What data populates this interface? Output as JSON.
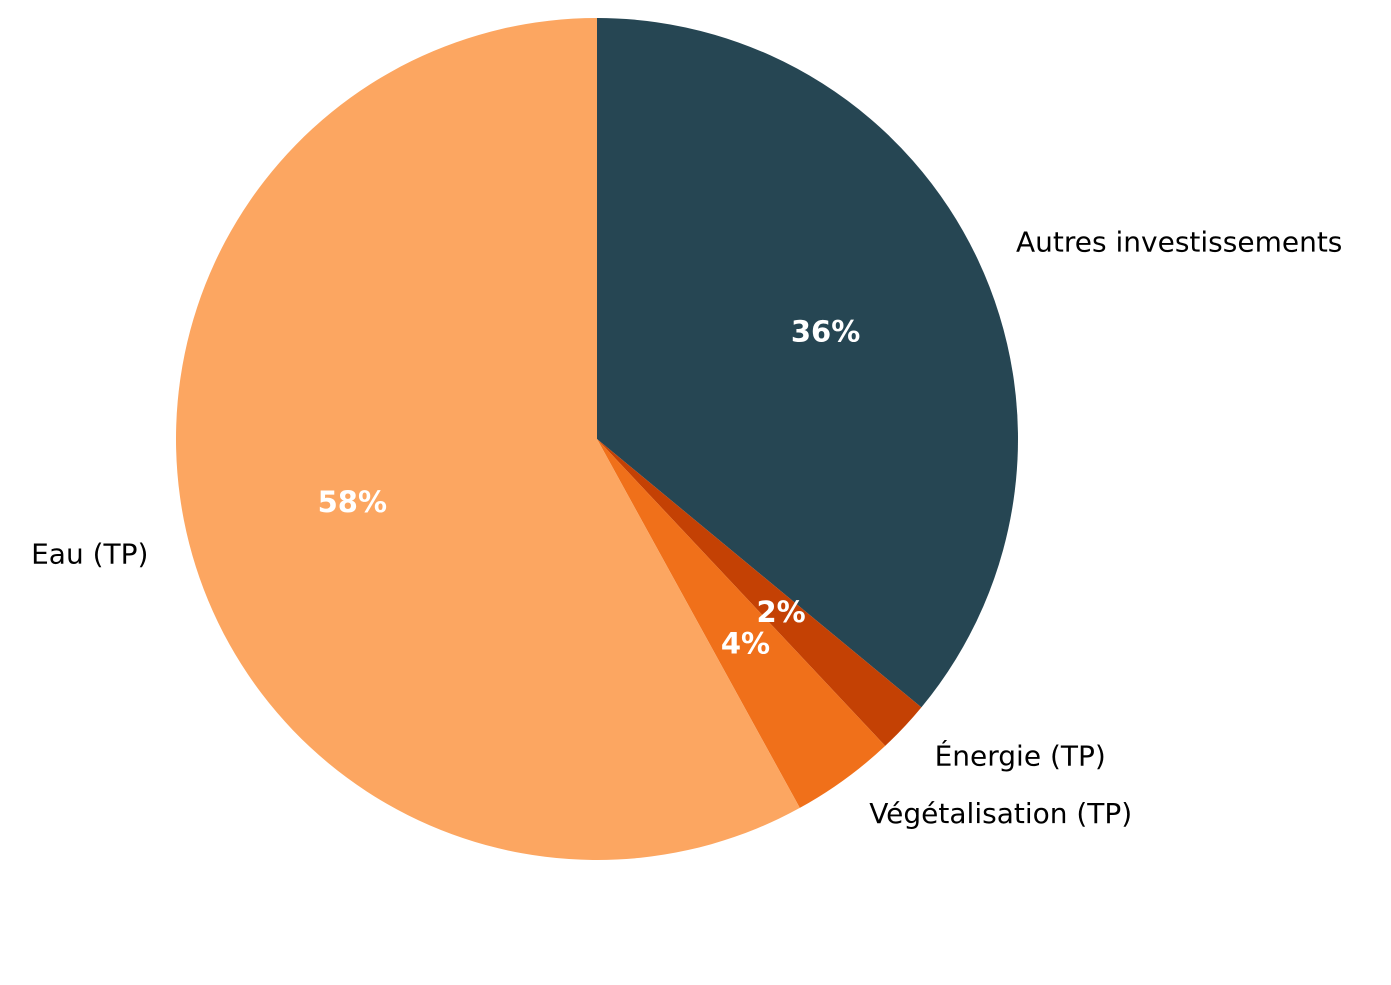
{
  "chart_data": {
    "type": "pie",
    "title": "",
    "start_angle_deg": 90,
    "direction": "clockwise",
    "slices": [
      {
        "label": "Autres investissements",
        "value": 36,
        "pct_label": "36%",
        "color": "#264653"
      },
      {
        "label": "Énergie (TP)",
        "value": 2,
        "pct_label": "2%",
        "color": "#C44104"
      },
      {
        "label": "Végétalisation (TP)",
        "value": 4,
        "pct_label": "4%",
        "color": "#F0701A"
      },
      {
        "label": "Eau (TP)",
        "value": 58,
        "pct_label": "58%",
        "color": "#FCA661"
      }
    ]
  }
}
